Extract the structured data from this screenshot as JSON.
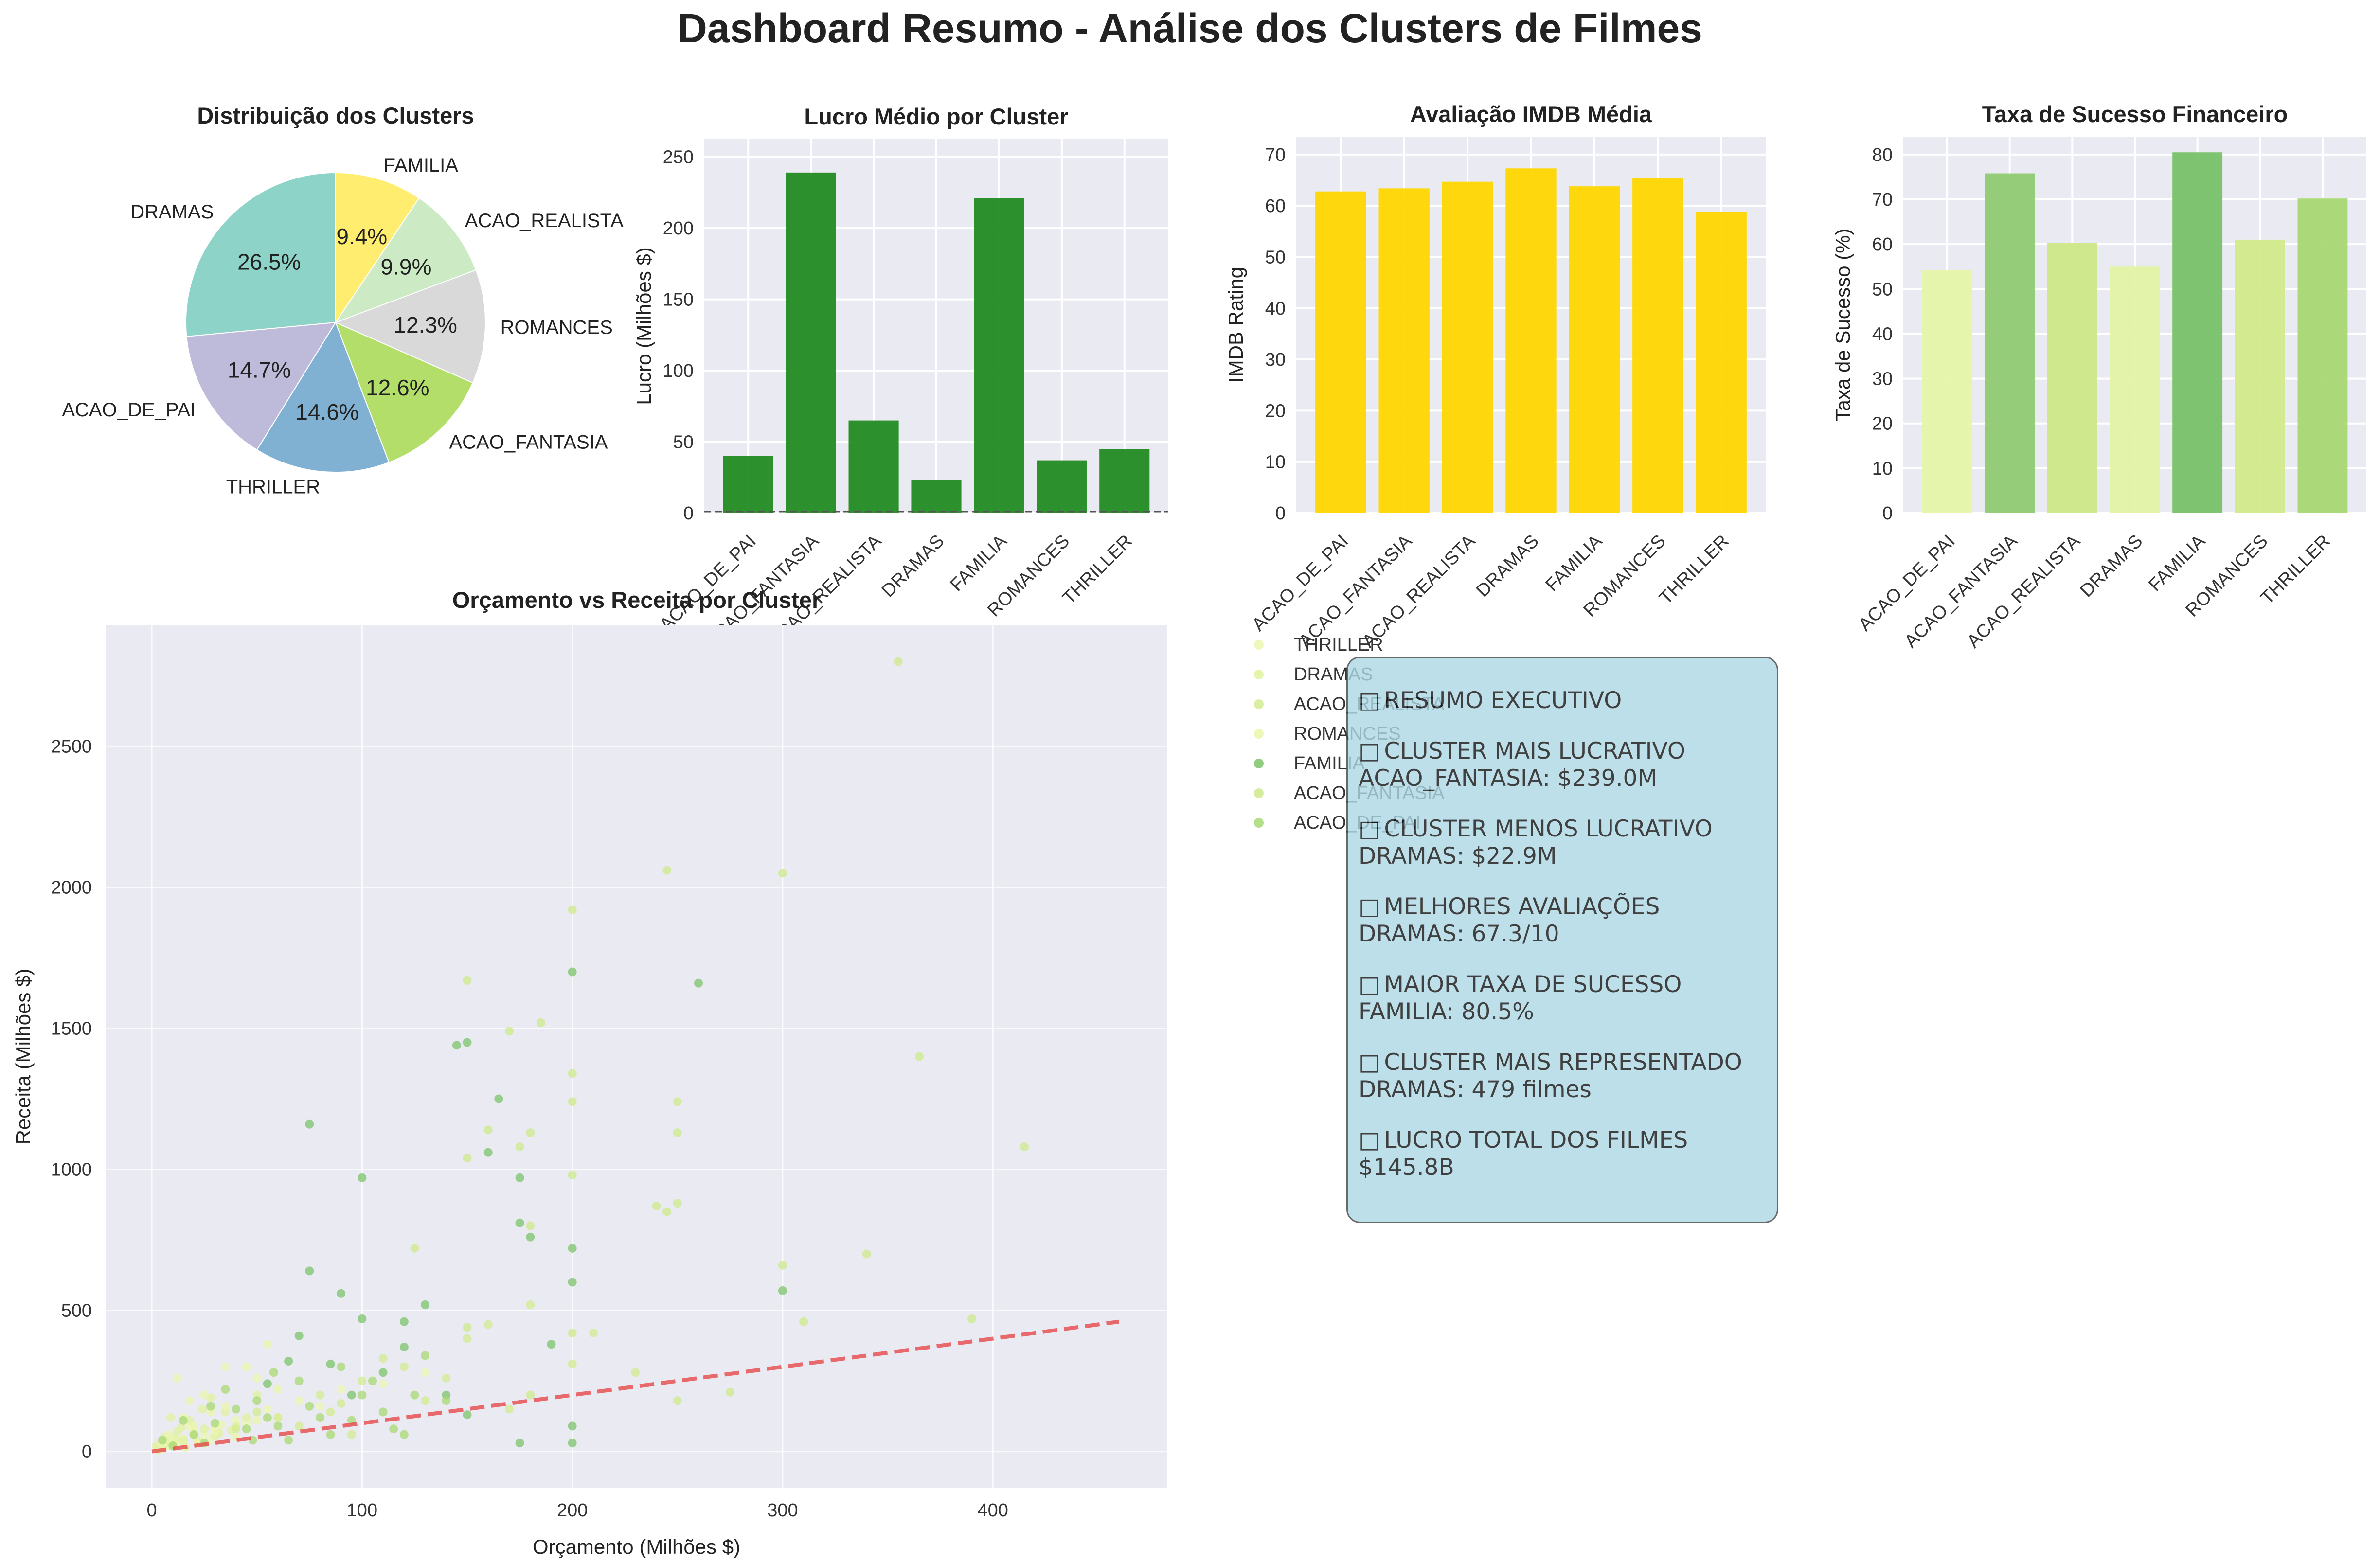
{
  "figure": {
    "title": "Dashboard Resumo - Análise dos Clusters de Filmes"
  },
  "summary": {
    "title": "RESUMO EXECUTIVO",
    "icon": "□",
    "items": [
      {
        "label": "CLUSTER MAIS LUCRATIVO",
        "value": "ACAO_FANTASIA: $239.0M"
      },
      {
        "label": "CLUSTER MENOS LUCRATIVO",
        "value": "DRAMAS: $22.9M"
      },
      {
        "label": "MELHORES AVALIAÇÕES",
        "value": "DRAMAS: 67.3/10"
      },
      {
        "label": "MAIOR TAXA DE SUCESSO",
        "value": "FAMILIA: 80.5%"
      },
      {
        "label": "CLUSTER MAIS REPRESENTADO",
        "value": "DRAMAS: 479 filmes"
      },
      {
        "label": "LUCRO TOTAL DOS FILMES",
        "value": "$145.8B"
      }
    ]
  },
  "chart_data": [
    {
      "type": "pie",
      "title": "Distribuição dos Clusters",
      "slices": [
        {
          "label": "DRAMAS",
          "value": 26.5,
          "text": "26.5%",
          "color": "#8dd3c7"
        },
        {
          "label": "ACAO_DE_PAI",
          "value": 14.7,
          "text": "14.7%",
          "color": "#bebada"
        },
        {
          "label": "THRILLER",
          "value": 14.6,
          "text": "14.6%",
          "color": "#80b1d3"
        },
        {
          "label": "ACAO_FANTASIA",
          "value": 12.6,
          "text": "12.6%",
          "color": "#b3de69"
        },
        {
          "label": "ROMANCES",
          "value": 12.3,
          "text": "12.3%",
          "color": "#d9d9d9"
        },
        {
          "label": "ACAO_REALISTA",
          "value": 9.9,
          "text": "9.9%",
          "color": "#ccebc5"
        },
        {
          "label": "FAMILIA",
          "value": 9.4,
          "text": "9.4%",
          "color": "#ffed6f"
        }
      ]
    },
    {
      "type": "bar",
      "title": "Lucro Médio por Cluster",
      "ylabel": "Lucro (Milhões $)",
      "categories": [
        "ACAO_DE_PAI",
        "ACAO_FANTASIA",
        "ACAO_REALISTA",
        "DRAMAS",
        "FAMILIA",
        "ROMANCES",
        "THRILLER"
      ],
      "values": [
        40,
        239,
        65,
        22.9,
        221,
        37,
        45
      ],
      "ylim": [
        0,
        250
      ],
      "yticks": [
        0,
        50,
        100,
        150,
        200,
        250
      ],
      "color": "#228b22",
      "grid": true
    },
    {
      "type": "bar",
      "title": "Avaliação IMDB Média",
      "ylabel": "IMDB Rating",
      "categories": [
        "ACAO_DE_PAI",
        "ACAO_FANTASIA",
        "ACAO_REALISTA",
        "DRAMAS",
        "FAMILIA",
        "ROMANCES",
        "THRILLER"
      ],
      "values": [
        62.8,
        63.4,
        64.7,
        67.3,
        63.8,
        65.4,
        58.8
      ],
      "ylim": [
        0,
        70
      ],
      "yticks": [
        0,
        10,
        20,
        30,
        40,
        50,
        60,
        70
      ],
      "color": "#ffd700",
      "grid": true
    },
    {
      "type": "bar",
      "title": "Taxa de Sucesso Financeiro",
      "ylabel": "Taxa de Sucesso (%)",
      "categories": [
        "ACAO_DE_PAI",
        "ACAO_FANTASIA",
        "ACAO_REALISTA",
        "DRAMAS",
        "FAMILIA",
        "ROMANCES",
        "THRILLER"
      ],
      "values": [
        54.2,
        75.8,
        60.3,
        55.0,
        80.5,
        61.0,
        70.2
      ],
      "colors": [
        "#e6f5a8",
        "#8fca72",
        "#cfe887",
        "#e4f3a5",
        "#78c168",
        "#d2ea8a",
        "#a8d873"
      ],
      "ylim": [
        0,
        80
      ],
      "yticks": [
        0,
        10,
        20,
        30,
        40,
        50,
        60,
        70,
        80
      ],
      "grid": true
    },
    {
      "type": "scatter",
      "title": "Orçamento vs Receita por Cluster",
      "xlabel": "Orçamento (Milhões $)",
      "ylabel": "Receita (Milhões $)",
      "xlim": [
        -22,
        483
      ],
      "ylim": [
        -130,
        2930
      ],
      "xticks": [
        0,
        100,
        200,
        300,
        400
      ],
      "yticks": [
        0,
        500,
        1000,
        1500,
        2000,
        2500
      ],
      "trend_line": {
        "x": [
          0,
          460
        ],
        "y": [
          0,
          460
        ],
        "color": "#e8494b",
        "style": "dashed"
      },
      "legend": {
        "position": "right-outside-top",
        "entries": [
          "THRILLER",
          "DRAMAS",
          "ACAO_REALISTA",
          "ROMANCES",
          "FAMILIA",
          "ACAO_FANTASIA",
          "ACAO_DE_PAI"
        ]
      },
      "series": [
        {
          "name": "THRILLER",
          "color": "#ebf7b1",
          "points": [
            [
              12,
              30
            ],
            [
              25,
              60
            ],
            [
              40,
              110
            ],
            [
              55,
              150
            ],
            [
              8,
              20
            ],
            [
              30,
              80
            ],
            [
              70,
              180
            ],
            [
              90,
              220
            ],
            [
              15,
              45
            ],
            [
              45,
              100
            ],
            [
              110,
              240
            ],
            [
              60,
              120
            ],
            [
              20,
              70
            ],
            [
              35,
              300
            ],
            [
              5,
              15
            ],
            [
              80,
              160
            ],
            [
              130,
              280
            ],
            [
              18,
              90
            ],
            [
              50,
              260
            ],
            [
              28,
              40
            ]
          ]
        },
        {
          "name": "DRAMAS",
          "color": "#e0f2a0",
          "points": [
            [
              5,
              10
            ],
            [
              10,
              25
            ],
            [
              15,
              40
            ],
            [
              20,
              60
            ],
            [
              25,
              80
            ],
            [
              30,
              55
            ],
            [
              8,
              30
            ],
            [
              12,
              70
            ],
            [
              18,
              110
            ],
            [
              22,
              35
            ],
            [
              35,
              140
            ],
            [
              40,
              90
            ],
            [
              3,
              5
            ],
            [
              45,
              120
            ],
            [
              6,
              50
            ],
            [
              28,
              190
            ],
            [
              16,
              15
            ],
            [
              50,
              200
            ],
            [
              14,
              85
            ],
            [
              9,
              120
            ],
            [
              32,
              65
            ],
            [
              11,
              45
            ],
            [
              24,
              150
            ],
            [
              38,
              75
            ],
            [
              2,
              20
            ]
          ]
        },
        {
          "name": "ACAO_REALISTA",
          "color": "#d3eb90",
          "points": [
            [
              50,
              140
            ],
            [
              80,
              200
            ],
            [
              100,
              250
            ],
            [
              120,
              300
            ],
            [
              150,
              400
            ],
            [
              60,
              120
            ],
            [
              90,
              170
            ],
            [
              110,
              330
            ],
            [
              140,
              260
            ],
            [
              70,
              90
            ],
            [
              160,
              450
            ],
            [
              180,
              520
            ],
            [
              200,
              310
            ],
            [
              95,
              60
            ],
            [
              130,
              180
            ],
            [
              170,
              150
            ],
            [
              40,
              80
            ],
            [
              210,
              420
            ],
            [
              230,
              280
            ],
            [
              85,
              140
            ]
          ]
        },
        {
          "name": "ROMANCES",
          "color": "#e9f6ac",
          "points": [
            [
              10,
              40
            ],
            [
              20,
              90
            ],
            [
              30,
              70
            ],
            [
              15,
              120
            ],
            [
              25,
              200
            ],
            [
              35,
              160
            ],
            [
              40,
              50
            ],
            [
              12,
              260
            ],
            [
              22,
              30
            ],
            [
              50,
              110
            ],
            [
              18,
              180
            ],
            [
              8,
              60
            ],
            [
              28,
              140
            ],
            [
              45,
              300
            ],
            [
              60,
              220
            ],
            [
              5,
              25
            ],
            [
              33,
              95
            ],
            [
              55,
              380
            ]
          ]
        },
        {
          "name": "FAMILIA",
          "color": "#7cc46b",
          "points": [
            [
              75,
              640
            ],
            [
              100,
              970
            ],
            [
              150,
              1450
            ],
            [
              160,
              1060
            ],
            [
              175,
              810
            ],
            [
              200,
              1700
            ],
            [
              200,
              720
            ],
            [
              260,
              1660
            ],
            [
              145,
              1440
            ],
            [
              90,
              560
            ],
            [
              120,
              460
            ],
            [
              180,
              760
            ],
            [
              75,
              1160
            ],
            [
              100,
              470
            ],
            [
              130,
              520
            ],
            [
              165,
              1250
            ],
            [
              65,
              320
            ],
            [
              110,
              280
            ],
            [
              200,
              600
            ],
            [
              175,
              970
            ],
            [
              85,
              310
            ],
            [
              300,
              570
            ],
            [
              140,
              200
            ],
            [
              190,
              380
            ],
            [
              55,
              240
            ],
            [
              70,
              410
            ],
            [
              120,
              370
            ],
            [
              95,
              200
            ],
            [
              200,
              90
            ],
            [
              175,
              30
            ],
            [
              150,
              130
            ],
            [
              200,
              30
            ]
          ]
        },
        {
          "name": "ACAO_FANTASIA",
          "color": "#cce98b",
          "points": [
            [
              355,
              2800
            ],
            [
              245,
              2060
            ],
            [
              200,
              1920
            ],
            [
              300,
              2050
            ],
            [
              150,
              1670
            ],
            [
              170,
              1490
            ],
            [
              185,
              1520
            ],
            [
              200,
              1340
            ],
            [
              250,
              1240
            ],
            [
              365,
              1400
            ],
            [
              415,
              1080
            ],
            [
              200,
              1240
            ],
            [
              250,
              1130
            ],
            [
              180,
              1130
            ],
            [
              160,
              1140
            ],
            [
              200,
              980
            ],
            [
              150,
              1040
            ],
            [
              250,
              880
            ],
            [
              245,
              850
            ],
            [
              300,
              660
            ],
            [
              340,
              700
            ],
            [
              390,
              470
            ],
            [
              310,
              460
            ],
            [
              150,
              440
            ],
            [
              200,
              420
            ],
            [
              125,
              720
            ],
            [
              175,
              1080
            ],
            [
              180,
              800
            ],
            [
              240,
              870
            ],
            [
              250,
              180
            ],
            [
              180,
              200
            ],
            [
              275,
              210
            ]
          ]
        },
        {
          "name": "ACAO_DE_PAI",
          "color": "#a8d873",
          "points": [
            [
              10,
              20
            ],
            [
              20,
              60
            ],
            [
              30,
              100
            ],
            [
              40,
              150
            ],
            [
              50,
              180
            ],
            [
              60,
              90
            ],
            [
              70,
              250
            ],
            [
              80,
              120
            ],
            [
              90,
              300
            ],
            [
              100,
              200
            ],
            [
              110,
              140
            ],
            [
              120,
              60
            ],
            [
              130,
              340
            ],
            [
              140,
              180
            ],
            [
              25,
              30
            ],
            [
              35,
              220
            ],
            [
              45,
              80
            ],
            [
              55,
              120
            ],
            [
              65,
              40
            ],
            [
              75,
              160
            ],
            [
              85,
              60
            ],
            [
              95,
              110
            ],
            [
              105,
              250
            ],
            [
              115,
              80
            ],
            [
              125,
              200
            ],
            [
              15,
              110
            ],
            [
              5,
              40
            ],
            [
              28,
              160
            ],
            [
              48,
              40
            ],
            [
              58,
              280
            ]
          ]
        }
      ]
    }
  ]
}
